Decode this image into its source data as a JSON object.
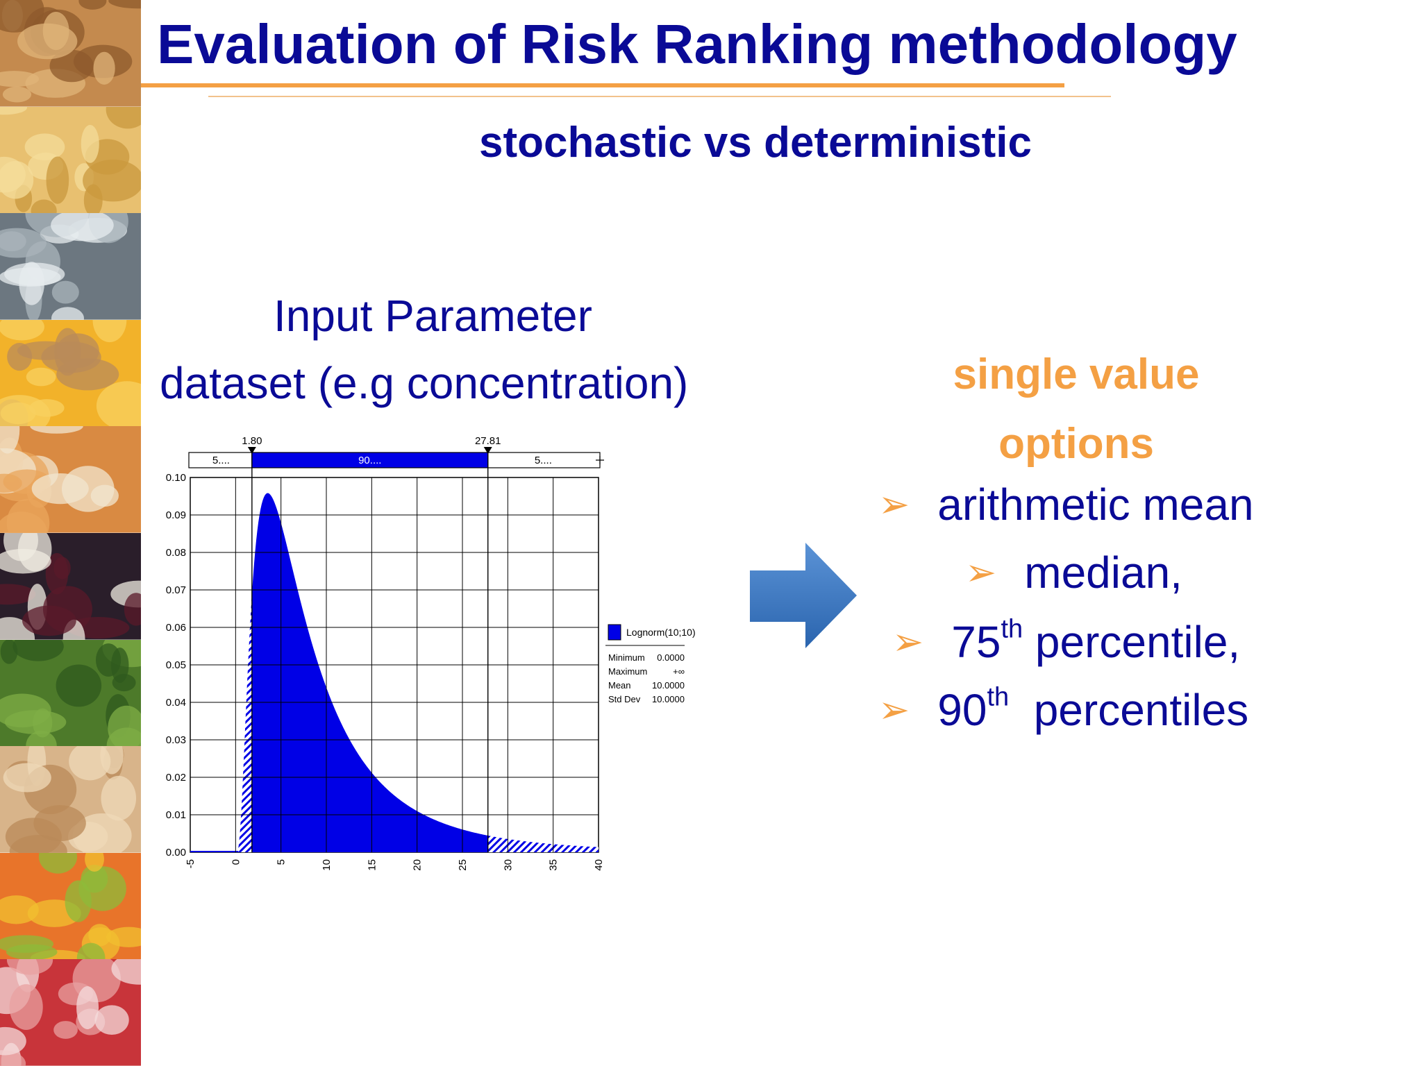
{
  "title": "Evaluation of Risk Ranking methodology",
  "subtitle": "stochastic vs deterministic",
  "caption_lines": [
    "Input Parameter",
    "dataset (e.g concentration)"
  ],
  "options_heading": [
    "single value",
    "options"
  ],
  "options": [
    {
      "text": "arithmetic mean",
      "sup": "",
      "after": ""
    },
    {
      "text": "median,",
      "sup": "",
      "after": ""
    },
    {
      "text": "75",
      "sup": "th",
      "after": " percentile,"
    },
    {
      "text": "90",
      "sup": "th",
      "after": "  percentiles"
    }
  ],
  "bullet_glyph": "➢",
  "colors": {
    "title": "#0a0a96",
    "accent": "#f4a044",
    "chart_fill": "#0000e6",
    "arrow": "#3a78c4"
  },
  "strip_tiles": [
    "nuts",
    "pasta",
    "fish",
    "cheese",
    "eggs",
    "wine-bottles",
    "salad-greens",
    "bread",
    "fruit",
    "cured-meat"
  ],
  "chart_data": {
    "type": "area",
    "distribution": "Lognorm(10;10)",
    "xlim": [
      -5,
      40
    ],
    "ylim": [
      0,
      0.1
    ],
    "x_ticks": [
      "-5",
      "0",
      "5",
      "10",
      "15",
      "20",
      "25",
      "30",
      "35",
      "40"
    ],
    "y_ticks": [
      "0.00",
      "0.01",
      "0.02",
      "0.03",
      "0.04",
      "0.05",
      "0.06",
      "0.07",
      "0.08",
      "0.09",
      "0.10"
    ],
    "delimiters": [
      {
        "label": "1.80",
        "x": 1.8
      },
      {
        "label": "27.81",
        "x": 27.81
      }
    ],
    "bands": [
      "5....",
      "90....",
      "5...."
    ],
    "legend": {
      "name": "Lognorm(10;10)",
      "stats": [
        {
          "label": "Minimum",
          "value": "0.0000"
        },
        {
          "label": "Maximum",
          "value": "+∞"
        },
        {
          "label": "Mean",
          "value": "10.0000"
        },
        {
          "label": "Std Dev",
          "value": "10.0000"
        }
      ]
    },
    "grid": true
  }
}
